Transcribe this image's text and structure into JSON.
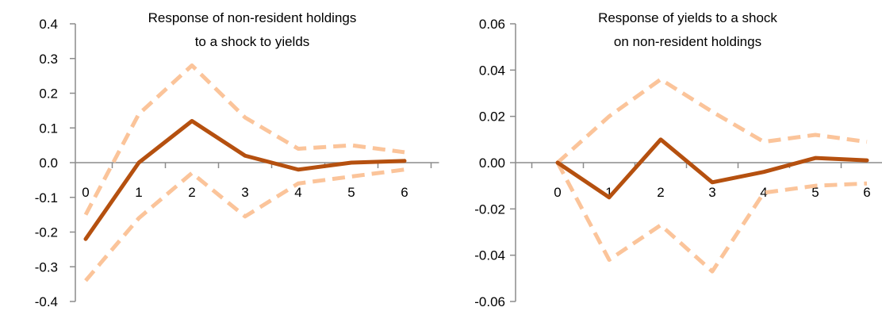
{
  "colors": {
    "estimate": "#b5500f",
    "band": "#fbc49a",
    "axis": "#8c8c8c",
    "text": "#000000",
    "background": "#ffffff"
  },
  "chart_data": [
    {
      "type": "line",
      "title_lines": [
        "Response of non-resident holdings",
        "to a shock to yields"
      ],
      "xlabel": "",
      "ylabel": "",
      "x": [
        0,
        1,
        2,
        3,
        4,
        5,
        6
      ],
      "x_tick_labels": [
        "0",
        "1",
        "2",
        "3",
        "4",
        "5",
        "6"
      ],
      "ylim": [
        -0.4,
        0.4
      ],
      "y_tick_labels": [
        "0.4",
        "0.3",
        "0.2",
        "0.1",
        "0.0",
        "-0.1",
        "-0.2",
        "-0.3",
        "-0.4"
      ],
      "y_ticks": [
        0.4,
        0.3,
        0.2,
        0.1,
        0.0,
        -0.1,
        -0.2,
        -0.3,
        -0.4
      ],
      "grid": false,
      "series": [
        {
          "role": "estimate",
          "style": "solid",
          "values": [
            -0.22,
            0.0,
            0.12,
            0.02,
            -0.02,
            0.0,
            0.005
          ]
        },
        {
          "role": "upper",
          "style": "dashed",
          "values": [
            -0.15,
            0.14,
            0.28,
            0.13,
            0.04,
            0.05,
            0.03
          ]
        },
        {
          "role": "lower",
          "style": "dashed",
          "values": [
            -0.34,
            -0.16,
            -0.03,
            -0.155,
            -0.06,
            -0.04,
            -0.02
          ]
        }
      ]
    },
    {
      "type": "line",
      "title_lines": [
        "Response of yields to a shock",
        "on non-resident holdings"
      ],
      "xlabel": "",
      "ylabel": "",
      "x": [
        0,
        1,
        2,
        3,
        4,
        5,
        6
      ],
      "x_tick_labels": [
        "0",
        "1",
        "2",
        "3",
        "4",
        "5",
        "6"
      ],
      "ylim": [
        -0.06,
        0.06
      ],
      "y_tick_labels": [
        "0.06",
        "0.04",
        "0.02",
        "0.00",
        "-0.02",
        "-0.04",
        "-0.06"
      ],
      "y_ticks": [
        0.06,
        0.04,
        0.02,
        0.0,
        -0.02,
        -0.04,
        -0.06
      ],
      "grid": false,
      "series": [
        {
          "role": "estimate",
          "style": "solid",
          "values": [
            0.0,
            -0.015,
            0.01,
            -0.0085,
            -0.004,
            0.002,
            0.001
          ]
        },
        {
          "role": "upper",
          "style": "dashed",
          "values": [
            0.0,
            0.02,
            0.036,
            0.022,
            0.009,
            0.012,
            0.009
          ]
        },
        {
          "role": "lower",
          "style": "dashed",
          "values": [
            0.0,
            -0.042,
            -0.027,
            -0.047,
            -0.013,
            -0.01,
            -0.009
          ]
        }
      ]
    }
  ]
}
